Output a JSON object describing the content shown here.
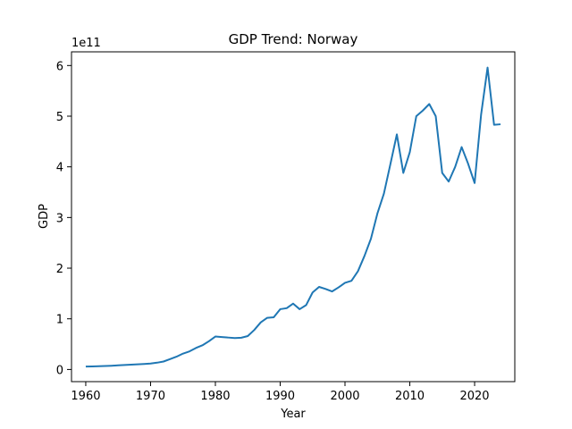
{
  "chart_data": {
    "type": "line",
    "title": "GDP Trend: Norway",
    "xlabel": "Year",
    "ylabel": "GDP",
    "y_offset_text": "1e11",
    "xlim": [
      1957.8,
      2026.2
    ],
    "ylim": [
      -0.24,
      6.27
    ],
    "x_ticks": [
      1960,
      1970,
      1980,
      1990,
      2000,
      2010,
      2020
    ],
    "y_ticks": [
      0,
      1,
      2,
      3,
      4,
      5,
      6
    ],
    "grid": false,
    "series": [
      {
        "name": "GDP",
        "color": "#1f77b4",
        "x": [
          1960,
          1961,
          1962,
          1963,
          1964,
          1965,
          1966,
          1967,
          1968,
          1969,
          1970,
          1971,
          1972,
          1973,
          1974,
          1975,
          1976,
          1977,
          1978,
          1979,
          1980,
          1981,
          1982,
          1983,
          1984,
          1985,
          1986,
          1987,
          1988,
          1989,
          1990,
          1991,
          1992,
          1993,
          1994,
          1995,
          1996,
          1997,
          1998,
          1999,
          2000,
          2001,
          2002,
          2003,
          2004,
          2005,
          2006,
          2007,
          2008,
          2009,
          2010,
          2011,
          2012,
          2013,
          2014,
          2015,
          2016,
          2017,
          2018,
          2019,
          2020,
          2021,
          2022,
          2023,
          2024
        ],
        "values": [
          0.057,
          0.061,
          0.064,
          0.068,
          0.074,
          0.081,
          0.088,
          0.095,
          0.101,
          0.108,
          0.118,
          0.134,
          0.157,
          0.204,
          0.252,
          0.313,
          0.357,
          0.424,
          0.477,
          0.557,
          0.65,
          0.64,
          0.63,
          0.62,
          0.627,
          0.66,
          0.78,
          0.93,
          1.02,
          1.03,
          1.19,
          1.21,
          1.3,
          1.19,
          1.27,
          1.52,
          1.63,
          1.59,
          1.54,
          1.62,
          1.71,
          1.75,
          1.94,
          2.24,
          2.58,
          3.08,
          3.47,
          4.05,
          4.64,
          3.88,
          4.29,
          5.0,
          5.11,
          5.24,
          5.0,
          3.88,
          3.71,
          4.0,
          4.39,
          4.06,
          3.68,
          5.03,
          5.96,
          4.83,
          4.84
        ]
      }
    ]
  }
}
